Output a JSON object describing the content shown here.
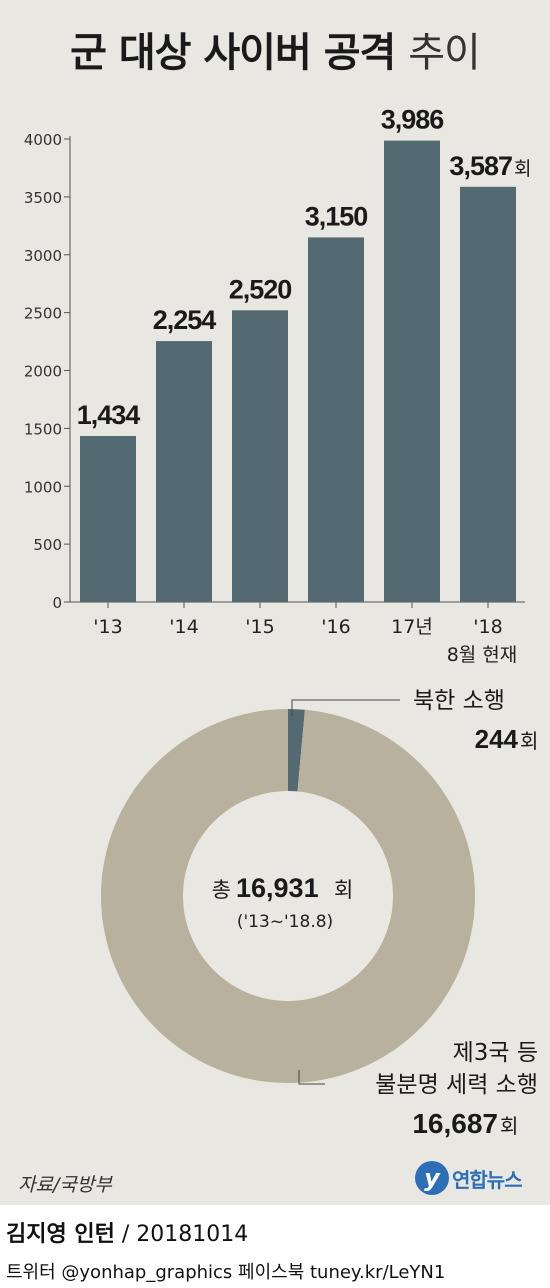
{
  "title": {
    "bold": "군 대상 사이버 공격",
    "light": "추이"
  },
  "chart_data": [
    {
      "type": "bar",
      "categories": [
        "'13",
        "'14",
        "'15",
        "'16",
        "17년",
        "'18"
      ],
      "values": [
        1434,
        2254,
        2520,
        3150,
        3986,
        3587
      ],
      "value_labels": [
        "1,434",
        "2,254",
        "2,520",
        "3,150",
        "3,986",
        "3,587"
      ],
      "value_unit": "회",
      "category_note": "8월 현재",
      "yticks": [
        "0",
        "500",
        "1000",
        "1500",
        "2000",
        "2500",
        "3000",
        "3500",
        "4000"
      ],
      "ylim": [
        0,
        4000
      ],
      "grid": false,
      "color": "#546a72"
    },
    {
      "type": "pie",
      "donut": true,
      "slices": [
        {
          "label": "북한 소행",
          "value": 244,
          "value_label": "244",
          "unit": "회",
          "color": "#546a72"
        },
        {
          "label": "제3국 등 불분명 세력 소행",
          "label_line1": "제3국 등",
          "label_line2": "불분명 세력 소행",
          "value": 16687,
          "value_label": "16,687",
          "unit": "회",
          "color": "#b7b19d"
        }
      ],
      "center_prefix": "총",
      "center_value": "16,931",
      "center_unit": "회",
      "center_period": "('13~'18.8)"
    }
  ],
  "source": "자료/국방부",
  "logo_text": "연합뉴스",
  "logo_mark": "y",
  "credit": {
    "name": "김지영 인턴",
    "date": "/ 20181014"
  },
  "social": "트위터 @yonhap_graphics  페이스북 tuney.kr/LeYN1"
}
